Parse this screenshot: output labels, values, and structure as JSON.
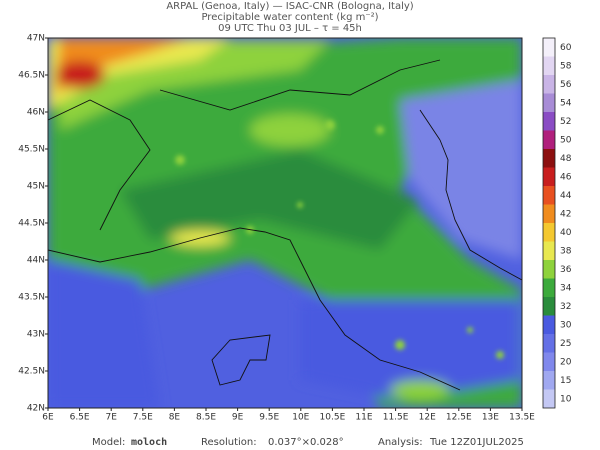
{
  "header": {
    "line1": "ARPAL (Genoa, Italy)  —  ISAC-CNR (Bologna, Italy)",
    "line2": "Precipitable water content (kg m⁻²)",
    "line3": "09 UTC Thu 03 JUL  –  τ = 45h"
  },
  "map": {
    "lat_labels": [
      "47N",
      "46.5N",
      "46N",
      "45.5N",
      "45N",
      "44.5N",
      "44N",
      "43.5N",
      "43N",
      "42.5N",
      "42N"
    ],
    "lon_labels": [
      "6E",
      "6.5E",
      "7E",
      "7.5E",
      "8E",
      "8.5E",
      "9E",
      "9.5E",
      "10E",
      "10.5E",
      "11E",
      "11.5E",
      "12E",
      "12.5E",
      "13E",
      "13.5E"
    ]
  },
  "colorbar": {
    "labels": [
      "60",
      "58",
      "56",
      "54",
      "52",
      "50",
      "48",
      "46",
      "44",
      "42",
      "40",
      "38",
      "36",
      "34",
      "32",
      "30",
      "25",
      "20",
      "15",
      "10"
    ],
    "colors": [
      "#f4f0fa",
      "#e2d6f2",
      "#c9b4e6",
      "#a88cd6",
      "#8a4cc4",
      "#b0207c",
      "#8c1010",
      "#c81e1e",
      "#e85020",
      "#f08c1e",
      "#f4c830",
      "#e8e850",
      "#8ed23c",
      "#3caa3c",
      "#2a8c3c",
      "#4a5ae0",
      "#6470e6",
      "#8088ec",
      "#a0a8f0",
      "#c4c8f4"
    ]
  },
  "footer": {
    "model_label": "Model:",
    "model": "moloch",
    "res_label": "Resolution:",
    "res": "0.037°×0.028°",
    "analysis_label": "Analysis:",
    "analysis": "Tue 12Z01JUL2025"
  }
}
